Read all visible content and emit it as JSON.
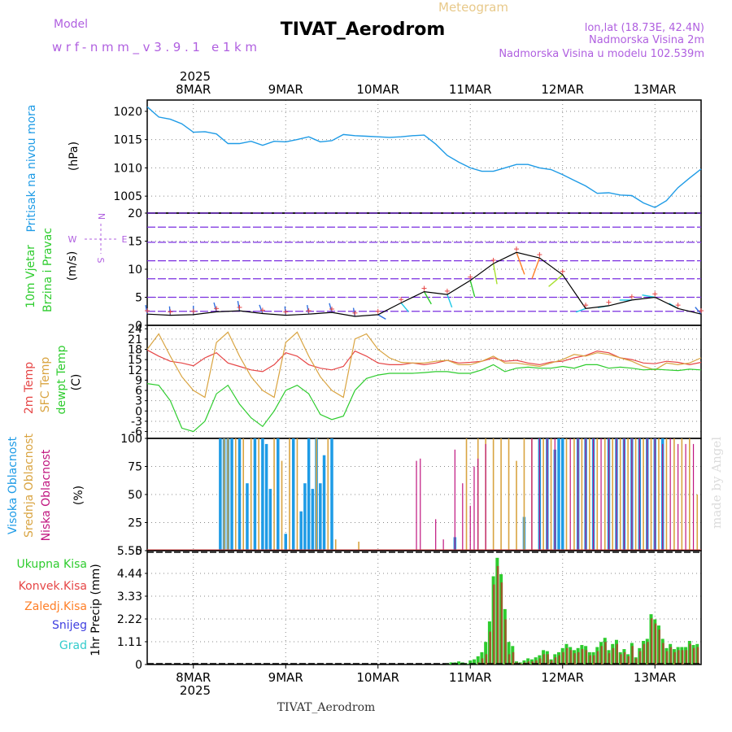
{
  "header": {
    "model_label": "Model",
    "model_name": "wrf-nmm_v3.9.1 e1km",
    "meteogram": "Meteogram",
    "station": "TIVAT_Aerodrom",
    "lonlat": "lon,lat (18.73E, 42.4N)",
    "altitude": "Nadmorska Visina 2m",
    "model_altitude": "Nadmorska Visina u modelu 102.539m",
    "footer_station": "TIVAT_Aerodrom",
    "credit": "made by Angel"
  },
  "colors": {
    "pressure": "#1e9be6",
    "t2m": "#e64646",
    "tsfc": "#d9a441",
    "dewpt": "#2ecc2e",
    "high_cloud": "#1e9be6",
    "mid_cloud": "#d9a441",
    "low_cloud": "#c0157f",
    "total_precip": "#2ecc2e",
    "conv_precip": "#e64646",
    "frozen_precip": "#ff7f27",
    "snow": "#4040e0",
    "hail": "#33cccc",
    "compass": "#b060e0"
  },
  "chart_data": [
    {
      "type": "line",
      "name": "pressure",
      "ylabel": "Pritisak na nivou mora",
      "unit": "(hPa)",
      "ylim": [
        1002,
        1022
      ],
      "yticks": [
        "1005",
        "1010",
        "1015",
        "1020"
      ],
      "x_hours": [
        0,
        3,
        6,
        9,
        12,
        15,
        18,
        21,
        24,
        27,
        30,
        33,
        36,
        39,
        42,
        45,
        48,
        51,
        54,
        57,
        60,
        63,
        66,
        69,
        72,
        75,
        78,
        81,
        84,
        87,
        90,
        93,
        96,
        99,
        102,
        105,
        108,
        111,
        114,
        117,
        120,
        123,
        126,
        129,
        132,
        135,
        138,
        141,
        144
      ],
      "values": [
        1020.8,
        1019.0,
        1018.6,
        1017.8,
        1016.3,
        1016.4,
        1016.0,
        1014.3,
        1014.3,
        1014.7,
        1014.0,
        1014.7,
        1014.6,
        1015.0,
        1015.5,
        1014.6,
        1014.8,
        1015.9,
        1015.7,
        1015.6,
        1015.5,
        1015.4,
        1015.5,
        1015.7,
        1015.8,
        1014.2,
        1012.2,
        1011.0,
        1010.0,
        1009.4,
        1009.4,
        1010.0,
        1010.6,
        1010.6,
        1010.0,
        1009.7,
        1008.8,
        1007.8,
        1006.8,
        1005.5,
        1005.6,
        1005.2,
        1005.1,
        1003.8,
        1003.0,
        1004.2,
        1006.5,
        1008.2,
        1009.8
      ]
    },
    {
      "type": "line",
      "name": "wind",
      "ylabel": "10m Vjetar Brzina i Pravac",
      "unit": "(m/s)",
      "ylim": [
        0,
        20
      ],
      "yticks": [
        "0",
        "5",
        "10",
        "15",
        "20"
      ],
      "compass": {
        "n": "N",
        "s": "S",
        "e": "E",
        "w": "W"
      },
      "x_hours": [
        0,
        6,
        12,
        18,
        24,
        30,
        36,
        42,
        48,
        54,
        60,
        66,
        72,
        78,
        84,
        90,
        96,
        102,
        108,
        114,
        120,
        126,
        132,
        138,
        144
      ],
      "speed": [
        2.0,
        1.8,
        1.9,
        2.4,
        2.6,
        2.1,
        1.8,
        2.0,
        2.3,
        1.6,
        1.9,
        4.0,
        6.0,
        5.5,
        8.0,
        11.0,
        13.0,
        12.0,
        9.0,
        3.0,
        3.5,
        4.5,
        5.0,
        3.0,
        2.0
      ],
      "direction_deg": [
        350,
        355,
        0,
        345,
        350,
        340,
        355,
        350,
        345,
        350,
        120,
        140,
        150,
        160,
        165,
        170,
        160,
        200,
        230,
        250,
        260,
        270,
        280,
        300,
        320
      ]
    },
    {
      "type": "line",
      "name": "temperature",
      "ylabel": [
        "2m Temp",
        "SFC Temp",
        "dewpt Temp"
      ],
      "unit": "(C)",
      "ylim": [
        -8,
        25
      ],
      "yticks": [
        "-6",
        "-3",
        "0",
        "3",
        "6",
        "9",
        "12",
        "15",
        "18",
        "21",
        "24"
      ],
      "x_hours": [
        0,
        3,
        6,
        9,
        12,
        15,
        18,
        21,
        24,
        27,
        30,
        33,
        36,
        39,
        42,
        45,
        48,
        51,
        54,
        57,
        60,
        63,
        66,
        69,
        72,
        75,
        78,
        81,
        84,
        87,
        90,
        93,
        96,
        99,
        102,
        105,
        108,
        111,
        114,
        117,
        120,
        123,
        126,
        129,
        132,
        135,
        138,
        141,
        144
      ],
      "series": [
        {
          "key": "t2m",
          "values": [
            17.8,
            16.0,
            14.5,
            14.0,
            13.2,
            15.5,
            17.0,
            14.0,
            13.0,
            12.0,
            11.5,
            13.5,
            17.0,
            16.0,
            13.5,
            12.5,
            12.0,
            13.0,
            17.5,
            16.0,
            14.0,
            13.5,
            13.5,
            14.0,
            13.5,
            14.0,
            14.8,
            14.0,
            14.2,
            14.5,
            15.5,
            14.5,
            14.8,
            14.0,
            13.5,
            14.3,
            14.5,
            15.5,
            16.2,
            17.5,
            17.0,
            15.5,
            15.0,
            14.0,
            13.8,
            14.5,
            14.2,
            13.5,
            14.2
          ]
        },
        {
          "key": "tsfc",
          "values": [
            18.0,
            22.5,
            16.0,
            10.0,
            6.0,
            4.0,
            20.0,
            23.0,
            16.0,
            10.0,
            6.0,
            4.0,
            20.0,
            23.0,
            16.0,
            10.0,
            6.0,
            4.0,
            21.0,
            22.5,
            18.0,
            15.5,
            14.2,
            14.0,
            14.0,
            14.5,
            14.8,
            13.5,
            13.5,
            14.5,
            16.0,
            14.0,
            14.0,
            13.5,
            13.0,
            14.0,
            15.0,
            16.5,
            16.0,
            17.0,
            16.5,
            15.5,
            14.5,
            13.0,
            12.0,
            14.0,
            13.5,
            14.0,
            15.5
          ]
        },
        {
          "key": "dewpt",
          "values": [
            8.0,
            7.5,
            3.0,
            -5.0,
            -6.0,
            -3.0,
            5.0,
            7.5,
            2.0,
            -2.0,
            -4.5,
            0.0,
            6.0,
            7.5,
            5.0,
            -1.0,
            -2.5,
            -1.5,
            6.0,
            9.5,
            10.5,
            11.0,
            11.0,
            11.0,
            11.2,
            11.5,
            11.5,
            11.0,
            11.0,
            12.0,
            13.5,
            11.5,
            12.5,
            12.8,
            12.5,
            12.5,
            13.0,
            12.5,
            13.5,
            13.5,
            12.5,
            12.8,
            12.5,
            12.0,
            12.2,
            12.0,
            11.8,
            12.2,
            12.0
          ]
        }
      ]
    },
    {
      "type": "bar",
      "name": "cloud_cover",
      "ylabel": [
        "Visoka Oblacnost",
        "Srednja Oblacnost",
        "Niska Oblacnost"
      ],
      "unit": "(%)",
      "ylim": [
        0,
        100
      ],
      "yticks": [
        "0",
        "25",
        "50",
        "75",
        "100"
      ],
      "series": [
        {
          "key": "high",
          "x_hours": [
            19,
            20,
            21,
            22,
            24,
            26,
            28,
            30,
            31,
            32,
            34,
            36,
            38,
            40,
            41,
            42,
            43,
            44,
            45,
            46,
            48,
            80,
            98,
            102,
            104,
            106,
            107,
            108,
            112,
            114,
            116,
            120,
            122,
            124,
            126,
            128,
            130,
            132,
            134
          ],
          "values": [
            100,
            100,
            100,
            100,
            100,
            60,
            100,
            100,
            95,
            55,
            100,
            15,
            100,
            35,
            60,
            100,
            55,
            100,
            60,
            85,
            100,
            12,
            30,
            100,
            100,
            90,
            100,
            100,
            100,
            100,
            100,
            100,
            100,
            100,
            100,
            100,
            100,
            100,
            100
          ]
        },
        {
          "key": "mid",
          "x_hours": [
            20,
            21,
            23,
            25,
            27,
            29,
            33,
            35,
            37,
            39,
            44,
            47,
            49,
            55,
            83,
            86,
            88,
            90,
            92,
            94,
            96,
            98,
            100,
            103,
            105,
            109,
            111,
            113,
            115,
            117,
            119,
            121,
            123,
            125,
            127,
            129,
            131,
            133,
            135,
            137,
            139,
            141,
            143
          ],
          "values": [
            100,
            100,
            100,
            100,
            100,
            100,
            100,
            80,
            100,
            100,
            100,
            100,
            10,
            8,
            100,
            100,
            100,
            100,
            100,
            100,
            80,
            100,
            100,
            100,
            100,
            100,
            100,
            100,
            100,
            100,
            100,
            100,
            100,
            100,
            100,
            100,
            100,
            100,
            100,
            100,
            100,
            100,
            50
          ]
        },
        {
          "key": "low",
          "x_hours": [
            70,
            71,
            75,
            77,
            80,
            82,
            84,
            85,
            86,
            88,
            100,
            102,
            104,
            106,
            110,
            112,
            114,
            116,
            118,
            120,
            122,
            124,
            126,
            128,
            130,
            132,
            134,
            136,
            138,
            140,
            142
          ],
          "values": [
            80,
            82,
            28,
            10,
            90,
            60,
            40,
            75,
            82,
            95,
            100,
            100,
            100,
            100,
            100,
            100,
            100,
            100,
            100,
            100,
            100,
            100,
            100,
            100,
            100,
            100,
            95,
            100,
            95,
            95,
            95
          ]
        }
      ]
    },
    {
      "type": "bar",
      "name": "precipitation",
      "ylabel": [
        "Ukupna Kisa",
        "Konvek.Kisa",
        "Zaledj.Kisa",
        "Snijeg",
        "Grad"
      ],
      "unit": "1hr Precip (mm)",
      "ylim": [
        0,
        5.55
      ],
      "yticks": [
        "0",
        "1.11",
        "2.22",
        "3.33",
        "4.44",
        "5.55"
      ],
      "x_hours": [
        78,
        79,
        80,
        81,
        82,
        83,
        84,
        85,
        86,
        87,
        88,
        89,
        90,
        91,
        92,
        93,
        94,
        95,
        96,
        97,
        98,
        99,
        100,
        101,
        102,
        103,
        104,
        105,
        106,
        107,
        108,
        109,
        110,
        111,
        112,
        113,
        114,
        115,
        116,
        117,
        118,
        119,
        120,
        121,
        122,
        123,
        124,
        125,
        126,
        127,
        128,
        129,
        130,
        131,
        132,
        133,
        134,
        135,
        136,
        137,
        138,
        139,
        140,
        141,
        142,
        143
      ],
      "total": [
        0.05,
        0.1,
        0.1,
        0.15,
        0.1,
        0.05,
        0.2,
        0.25,
        0.4,
        0.6,
        1.1,
        2.1,
        4.3,
        5.2,
        4.4,
        2.7,
        1.1,
        0.9,
        0.15,
        0.1,
        0.2,
        0.3,
        0.25,
        0.35,
        0.45,
        0.7,
        0.65,
        0.25,
        0.5,
        0.6,
        0.8,
        1.0,
        0.85,
        0.7,
        0.8,
        0.95,
        0.9,
        0.6,
        0.6,
        0.85,
        1.1,
        1.3,
        0.7,
        1.0,
        1.2,
        0.6,
        0.75,
        0.5,
        1.05,
        0.35,
        0.8,
        1.15,
        1.25,
        2.45,
        2.2,
        1.9,
        1.25,
        0.8,
        1.0,
        0.75,
        0.85,
        0.85,
        0.85,
        1.15,
        0.95,
        1.0
      ],
      "convective": [
        0,
        0,
        0,
        0,
        0,
        0,
        0,
        0,
        0.1,
        0.3,
        0.5,
        1.6,
        3.9,
        4.8,
        4.0,
        2.2,
        0.5,
        0.6,
        0.1,
        0.05,
        0.1,
        0.15,
        0.15,
        0.2,
        0.3,
        0.5,
        0.5,
        0.2,
        0.35,
        0.45,
        0.6,
        0.8,
        0.7,
        0.55,
        0.6,
        0.75,
        0.7,
        0.45,
        0.45,
        0.65,
        0.9,
        1.1,
        0.55,
        0.8,
        1.0,
        0.5,
        0.6,
        0.4,
        0.9,
        0.3,
        0.65,
        1.0,
        1.1,
        2.25,
        2.0,
        1.7,
        1.05,
        0.65,
        0.85,
        0.6,
        0.7,
        0.7,
        0.7,
        1.0,
        0.8,
        0.85
      ]
    }
  ],
  "time_axis": {
    "year": "2025",
    "start_day_label_index": 0,
    "days": [
      "8MAR",
      "9MAR",
      "10MAR",
      "11MAR",
      "12MAR",
      "13MAR"
    ]
  }
}
